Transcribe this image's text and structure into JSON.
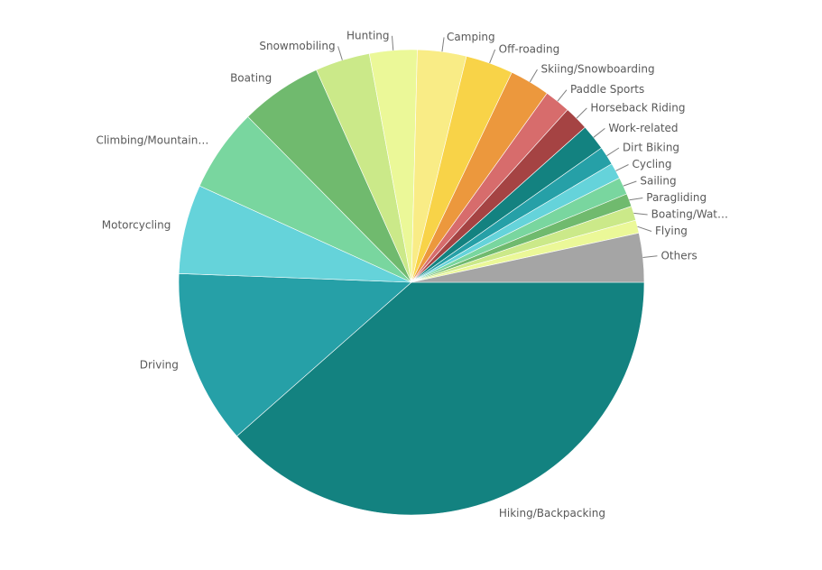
{
  "chart_data": {
    "type": "pie",
    "categories": [
      "Hiking/Backpacking",
      "Driving",
      "Motorcycling",
      "Climbing/Mountain…",
      "Boating",
      "Snowmobiling",
      "Hunting",
      "Camping",
      "Off-roading",
      "Skiing/Snowboarding",
      "Paddle Sports",
      "Horseback Riding",
      "Work-related",
      "Dirt Biking",
      "Cycling",
      "Sailing",
      "Paragliding",
      "Boating/Wat…",
      "Flying",
      "Others"
    ],
    "values": [
      38.5,
      12.1,
      6.2,
      5.8,
      5.7,
      3.8,
      3.3,
      3.4,
      3.3,
      2.8,
      1.8,
      1.7,
      1.8,
      1.3,
      1.1,
      1.2,
      0.9,
      1.0,
      0.9,
      3.4
    ],
    "colors": [
      "#138280",
      "#26a0a7",
      "#65d3da",
      "#79d69f",
      "#70ba6e",
      "#cbe989",
      "#ebf898",
      "#f9ec86",
      "#f8d348",
      "#ec983d",
      "#d76c6c",
      "#a54343",
      "#138280",
      "#26a0a7",
      "#65d3da",
      "#79d69f",
      "#70ba6e",
      "#cbe989",
      "#ebf898",
      "#a5a5a5"
    ]
  }
}
